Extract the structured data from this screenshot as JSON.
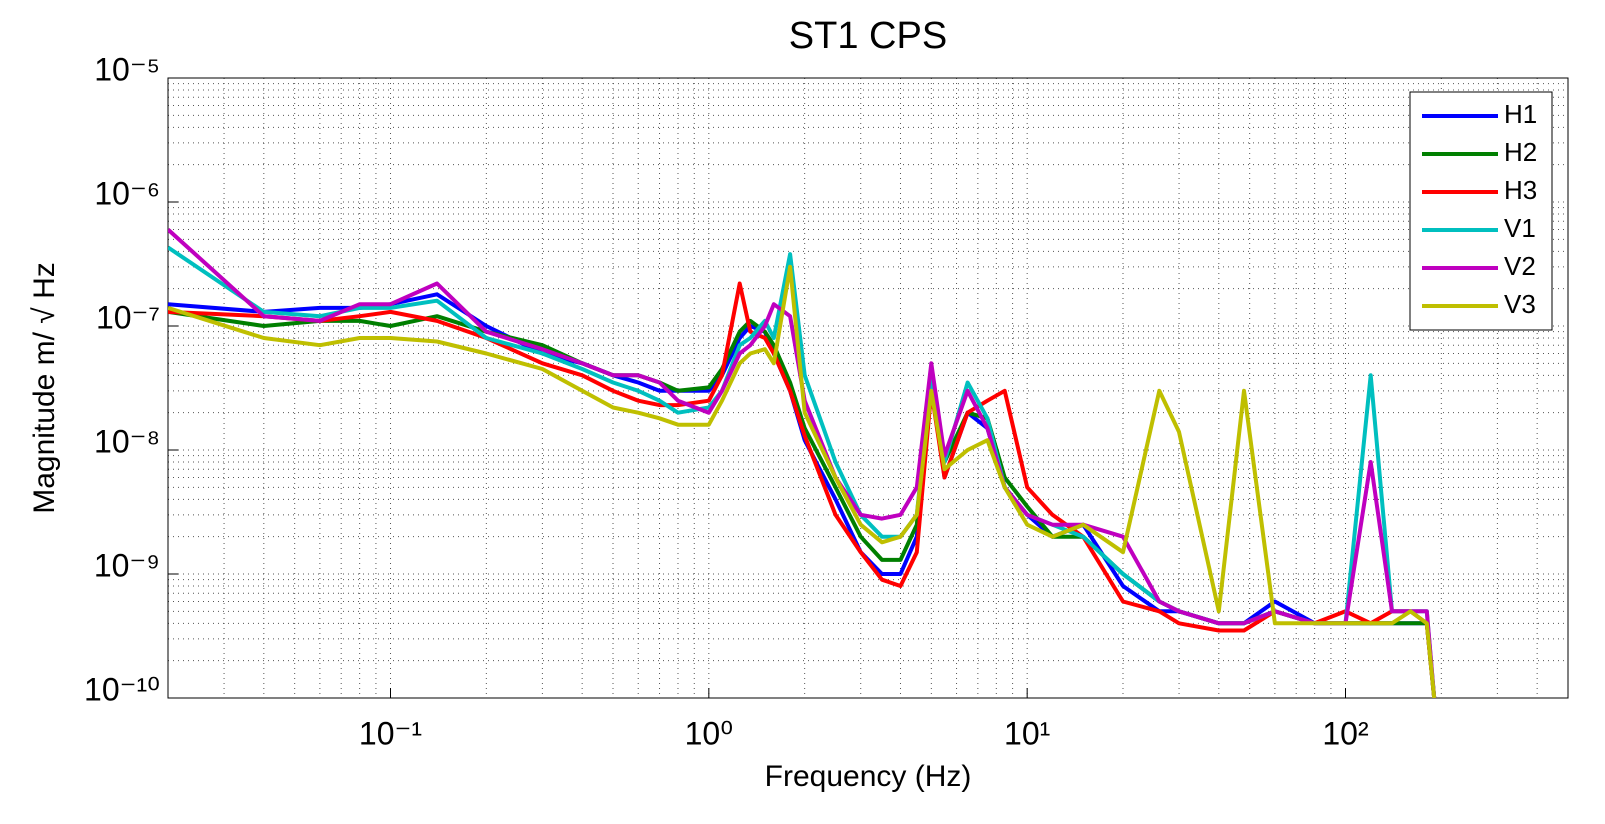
{
  "chart_data": {
    "type": "line",
    "title": "ST1 CPS",
    "xlabel": "Frequency (Hz)",
    "ylabel": "Magnitude m/ √ Hz",
    "xscale": "log",
    "yscale": "log",
    "grid": true,
    "minor_grid": true,
    "legend": "northeast",
    "xlim": [
      0.02,
      500
    ],
    "ylim": [
      1e-10,
      1e-05
    ],
    "xticks": [
      {
        "value": 0.1,
        "label": "10⁻¹"
      },
      {
        "value": 1,
        "label": "10⁰"
      },
      {
        "value": 10,
        "label": "10¹"
      },
      {
        "value": 100,
        "label": "10²"
      }
    ],
    "yticks": [
      {
        "value": 1e-10,
        "label": "10⁻¹⁰"
      },
      {
        "value": 1e-09,
        "label": "10⁻⁹"
      },
      {
        "value": 1e-08,
        "label": "10⁻⁸"
      },
      {
        "value": 1e-07,
        "label": "10⁻⁷"
      },
      {
        "value": 1e-06,
        "label": "10⁻⁶"
      },
      {
        "value": 1e-05,
        "label": "10⁻⁵"
      }
    ],
    "x": [
      0.02,
      0.04,
      0.06,
      0.08,
      0.1,
      0.14,
      0.2,
      0.3,
      0.4,
      0.5,
      0.6,
      0.7,
      0.8,
      1.0,
      1.1,
      1.25,
      1.35,
      1.5,
      1.6,
      1.8,
      2.0,
      2.5,
      3,
      3.5,
      4,
      4.5,
      5,
      5.5,
      6.5,
      7.5,
      8.5,
      10,
      12,
      15,
      20,
      26,
      30,
      40,
      48,
      60,
      80,
      100,
      120,
      140,
      160,
      180,
      190
    ],
    "series": [
      {
        "name": "H1",
        "color": "#0000ff",
        "values": [
          1.5e-07,
          1.3e-07,
          1.4e-07,
          1.4e-07,
          1.5e-07,
          1.8e-07,
          1e-07,
          6e-08,
          5e-08,
          4e-08,
          3.5e-08,
          3e-08,
          3e-08,
          3e-08,
          4e-08,
          8e-08,
          1e-07,
          9e-08,
          6e-08,
          3e-08,
          1.2e-08,
          4e-09,
          1.5e-09,
          1e-09,
          1e-09,
          2e-09,
          4e-08,
          6e-09,
          2e-08,
          1.5e-08,
          5e-09,
          3e-09,
          2e-09,
          2.5e-09,
          8e-10,
          5e-10,
          5e-10,
          4e-10,
          4e-10,
          6e-10,
          4e-10,
          4e-10,
          4e-10,
          4e-10,
          4e-10,
          4e-10,
          1e-10
        ]
      },
      {
        "name": "H2",
        "color": "#007f00",
        "values": [
          1.3e-07,
          1e-07,
          1.1e-07,
          1.1e-07,
          1e-07,
          1.2e-07,
          9e-08,
          7e-08,
          5e-08,
          4e-08,
          4e-08,
          3.5e-08,
          3e-08,
          3.2e-08,
          4.5e-08,
          9e-08,
          1.1e-07,
          9e-08,
          7e-08,
          3.5e-08,
          1.5e-08,
          5e-09,
          2e-09,
          1.3e-09,
          1.3e-09,
          2.5e-09,
          4e-08,
          8e-09,
          2e-08,
          1.8e-08,
          6e-09,
          3.5e-09,
          2e-09,
          2e-09,
          1e-09,
          6e-10,
          5e-10,
          4e-10,
          4e-10,
          5e-10,
          4e-10,
          4e-10,
          4e-10,
          4e-10,
          4e-10,
          4e-10,
          1e-10
        ]
      },
      {
        "name": "H3",
        "color": "#ff0000",
        "values": [
          1.3e-07,
          1.2e-07,
          1.1e-07,
          1.2e-07,
          1.3e-07,
          1.1e-07,
          8e-08,
          5e-08,
          4e-08,
          3e-08,
          2.5e-08,
          2.3e-08,
          2.3e-08,
          2.5e-08,
          4e-08,
          2.2e-07,
          9e-08,
          8e-08,
          6e-08,
          3e-08,
          1.3e-08,
          3e-09,
          1.5e-09,
          9e-10,
          8e-10,
          1.5e-09,
          3e-08,
          6e-09,
          2e-08,
          2.5e-08,
          3e-08,
          5e-09,
          3e-09,
          2e-09,
          6e-10,
          5e-10,
          4e-10,
          3.5e-10,
          3.5e-10,
          5e-10,
          4e-10,
          5e-10,
          4e-10,
          5e-10,
          5e-10,
          4e-10,
          1e-10
        ]
      },
      {
        "name": "V1",
        "color": "#00bfbf",
        "values": [
          4.3e-07,
          1.3e-07,
          1.2e-07,
          1.4e-07,
          1.4e-07,
          1.6e-07,
          8e-08,
          6e-08,
          4.5e-08,
          3.5e-08,
          3e-08,
          2.5e-08,
          2e-08,
          2.2e-08,
          3e-08,
          7e-08,
          8e-08,
          1.1e-07,
          8e-08,
          3.8e-07,
          4e-08,
          8e-09,
          3e-09,
          2e-09,
          2e-09,
          3e-09,
          4e-08,
          8e-09,
          3.5e-08,
          1.8e-08,
          5e-09,
          3e-09,
          2.5e-09,
          2e-09,
          1e-09,
          6e-10,
          5e-10,
          4e-10,
          4e-10,
          5e-10,
          4e-10,
          4e-10,
          4e-08,
          5e-10,
          5e-10,
          5e-10,
          1e-10
        ]
      },
      {
        "name": "V2",
        "color": "#bf00bf",
        "values": [
          6e-07,
          1.2e-07,
          1.1e-07,
          1.5e-07,
          1.5e-07,
          2.2e-07,
          9e-08,
          6.5e-08,
          5e-08,
          4e-08,
          4e-08,
          3.5e-08,
          2.5e-08,
          2e-08,
          3e-08,
          6e-08,
          7e-08,
          1e-07,
          1.5e-07,
          1.2e-07,
          2.5e-08,
          6e-09,
          3e-09,
          2.8e-09,
          3e-09,
          5e-09,
          5e-08,
          9e-09,
          3e-08,
          1.5e-08,
          5e-09,
          3e-09,
          2.5e-09,
          2.5e-09,
          2e-09,
          6e-10,
          5e-10,
          4e-10,
          4e-10,
          5e-10,
          4e-10,
          4e-10,
          8e-09,
          5e-10,
          5e-10,
          5e-10,
          1e-10
        ]
      },
      {
        "name": "V3",
        "color": "#bfbf00",
        "values": [
          1.4e-07,
          8e-08,
          7e-08,
          8e-08,
          8e-08,
          7.5e-08,
          6e-08,
          4.5e-08,
          3e-08,
          2.2e-08,
          2e-08,
          1.8e-08,
          1.6e-08,
          1.6e-08,
          2.5e-08,
          5e-08,
          6e-08,
          6.5e-08,
          5e-08,
          3e-07,
          2e-08,
          6e-09,
          2.5e-09,
          1.8e-09,
          2e-09,
          3e-09,
          3e-08,
          7e-09,
          1e-08,
          1.2e-08,
          5e-09,
          2.5e-09,
          2e-09,
          2.5e-09,
          1.5e-09,
          3e-08,
          1.4e-08,
          5e-10,
          3e-08,
          4e-10,
          4e-10,
          4e-10,
          4e-10,
          4e-10,
          5e-10,
          4e-10,
          1e-10
        ]
      }
    ]
  }
}
